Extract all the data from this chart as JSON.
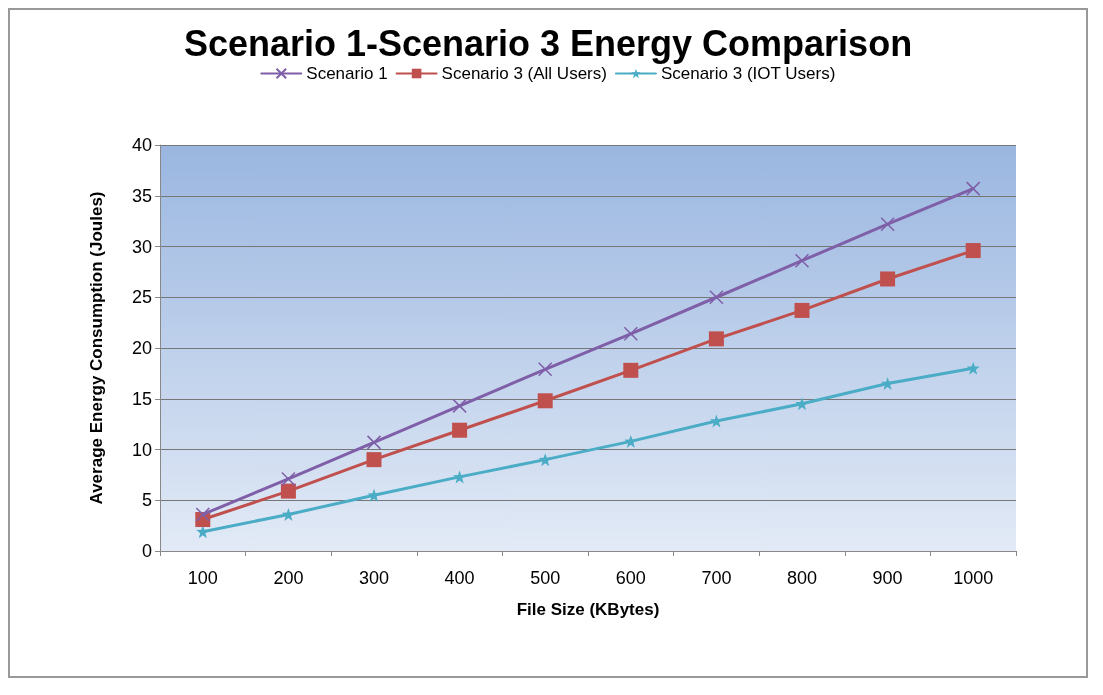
{
  "chart_data": {
    "type": "line",
    "title": "Scenario 1-Scenario 3 Energy Comparison",
    "xlabel": "File Size (KBytes)",
    "ylabel": "Average Energy Consumption (Joules)",
    "categories": [
      "100",
      "200",
      "300",
      "400",
      "500",
      "600",
      "700",
      "800",
      "900",
      "1000"
    ],
    "series": [
      {
        "name": "Scenario 1",
        "color": "#7f5fa8",
        "marker": "cross",
        "values": [
          3.6,
          7.1,
          10.7,
          14.3,
          17.9,
          21.4,
          25.0,
          28.6,
          32.2,
          35.7
        ]
      },
      {
        "name": "Scenario 3 (All Users)",
        "color": "#c0504d",
        "marker": "square",
        "values": [
          3.1,
          5.9,
          9.0,
          11.9,
          14.8,
          17.8,
          20.9,
          23.7,
          26.8,
          29.6
        ]
      },
      {
        "name": "Scenario 3 (IOT Users)",
        "color": "#4bacc6",
        "marker": "star",
        "values": [
          1.9,
          3.6,
          5.5,
          7.3,
          9.0,
          10.8,
          12.8,
          14.5,
          16.5,
          18.0
        ]
      }
    ],
    "ylim": [
      0,
      40
    ],
    "yticks": [
      0,
      5,
      10,
      15,
      20,
      25,
      30,
      35,
      40
    ],
    "grid": "y",
    "legend": "top",
    "line_style": "solid"
  }
}
